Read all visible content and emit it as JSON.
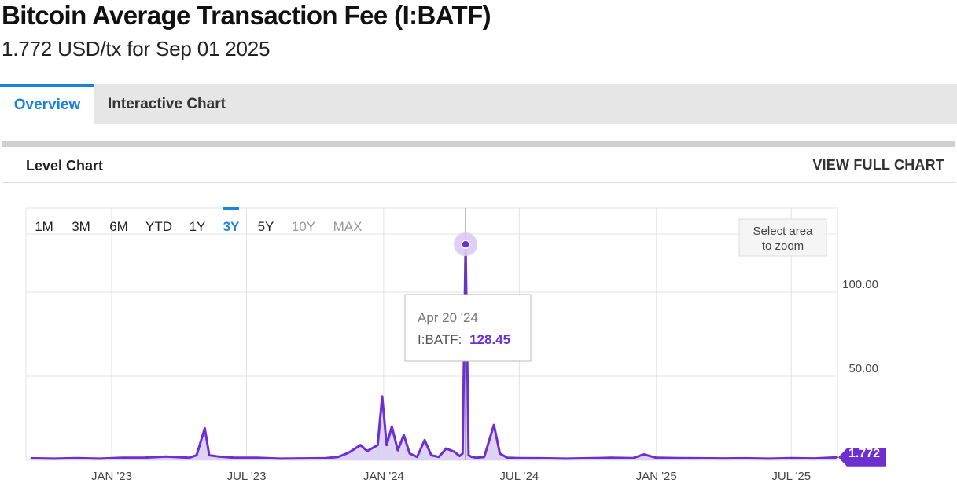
{
  "header": {
    "title": "Bitcoin Average Transaction Fee (I:BATF)",
    "subtitle": "1.772 USD/tx for Sep 01 2025"
  },
  "tabs": [
    {
      "label": "Overview",
      "active": true
    },
    {
      "label": "Interactive Chart",
      "active": false
    }
  ],
  "panel": {
    "title": "Level Chart",
    "link": "VIEW FULL CHART"
  },
  "range_buttons": [
    {
      "label": "1M",
      "state": "normal"
    },
    {
      "label": "3M",
      "state": "normal"
    },
    {
      "label": "6M",
      "state": "normal"
    },
    {
      "label": "YTD",
      "state": "normal"
    },
    {
      "label": "1Y",
      "state": "normal"
    },
    {
      "label": "3Y",
      "state": "active"
    },
    {
      "label": "5Y",
      "state": "normal"
    },
    {
      "label": "10Y",
      "state": "disabled"
    },
    {
      "label": "MAX",
      "state": "disabled"
    }
  ],
  "zoom_hint": [
    "Select area",
    "to zoom"
  ],
  "tooltip": {
    "date": "Apr 20 '24",
    "series": "I:BATF:",
    "value": "128.45"
  },
  "last_value_badge": "1.772",
  "colors": {
    "accent": "#1b84d8",
    "series": "#6d2fd0",
    "series_fill": "#d9cbf3",
    "badge": "#6d2fd0",
    "grid": "#e3e3e3"
  },
  "chart_data": {
    "type": "area",
    "series": [
      {
        "name": "I:BATF",
        "x": [
          "2022-09-15",
          "2022-10-15",
          "2022-11-15",
          "2022-12-15",
          "2023-01-15",
          "2023-02-15",
          "2023-03-15",
          "2023-04-15",
          "2023-04-25",
          "2023-05-06",
          "2023-05-12",
          "2023-05-25",
          "2023-06-15",
          "2023-07-15",
          "2023-08-15",
          "2023-09-15",
          "2023-10-15",
          "2023-11-01",
          "2023-11-15",
          "2023-12-01",
          "2023-12-10",
          "2023-12-16",
          "2023-12-24",
          "2023-12-30",
          "2024-01-05",
          "2024-01-12",
          "2024-01-20",
          "2024-01-28",
          "2024-02-05",
          "2024-02-15",
          "2024-02-25",
          "2024-03-05",
          "2024-03-15",
          "2024-03-25",
          "2024-04-05",
          "2024-04-12",
          "2024-04-16",
          "2024-04-20",
          "2024-04-24",
          "2024-04-28",
          "2024-05-05",
          "2024-05-15",
          "2024-05-28",
          "2024-06-05",
          "2024-06-15",
          "2024-07-01",
          "2024-08-01",
          "2024-09-01",
          "2024-10-01",
          "2024-11-01",
          "2024-12-01",
          "2024-12-15",
          "2025-01-01",
          "2025-02-01",
          "2025-03-01",
          "2025-04-01",
          "2025-05-01",
          "2025-06-01",
          "2025-07-01",
          "2025-08-01",
          "2025-09-01"
        ],
        "y": [
          1.2,
          1.0,
          1.3,
          1.0,
          1.5,
          1.6,
          2.2,
          1.5,
          3.0,
          19.0,
          3.0,
          2.2,
          1.5,
          1.5,
          1.0,
          1.1,
          1.3,
          2.0,
          4.5,
          9.0,
          5.5,
          7.0,
          9.0,
          38.0,
          9.0,
          20.0,
          6.0,
          15.0,
          4.0,
          2.0,
          12.0,
          3.0,
          2.0,
          7.0,
          5.0,
          2.5,
          4.0,
          128.45,
          3.0,
          2.0,
          1.5,
          2.0,
          21.0,
          4.0,
          1.5,
          1.3,
          1.2,
          1.0,
          1.2,
          1.5,
          1.3,
          3.5,
          1.5,
          1.3,
          1.2,
          1.1,
          1.2,
          1.0,
          1.3,
          1.1,
          1.772
        ]
      }
    ],
    "x_tick_labels": [
      "JAN '23",
      "JUL '23",
      "JAN '24",
      "JUL '24",
      "JAN '25",
      "JUL '25"
    ],
    "x_ticks": [
      "2023-01-01",
      "2023-07-01",
      "2024-01-01",
      "2024-07-01",
      "2025-01-01",
      "2025-07-01"
    ],
    "y_tick_labels": [
      "50.00",
      "100.00"
    ],
    "y_ticks": [
      50,
      100
    ],
    "xlim": [
      "2022-09-08",
      "2025-09-01"
    ],
    "ylim": [
      0,
      150
    ],
    "grid": true,
    "legend": "none"
  }
}
